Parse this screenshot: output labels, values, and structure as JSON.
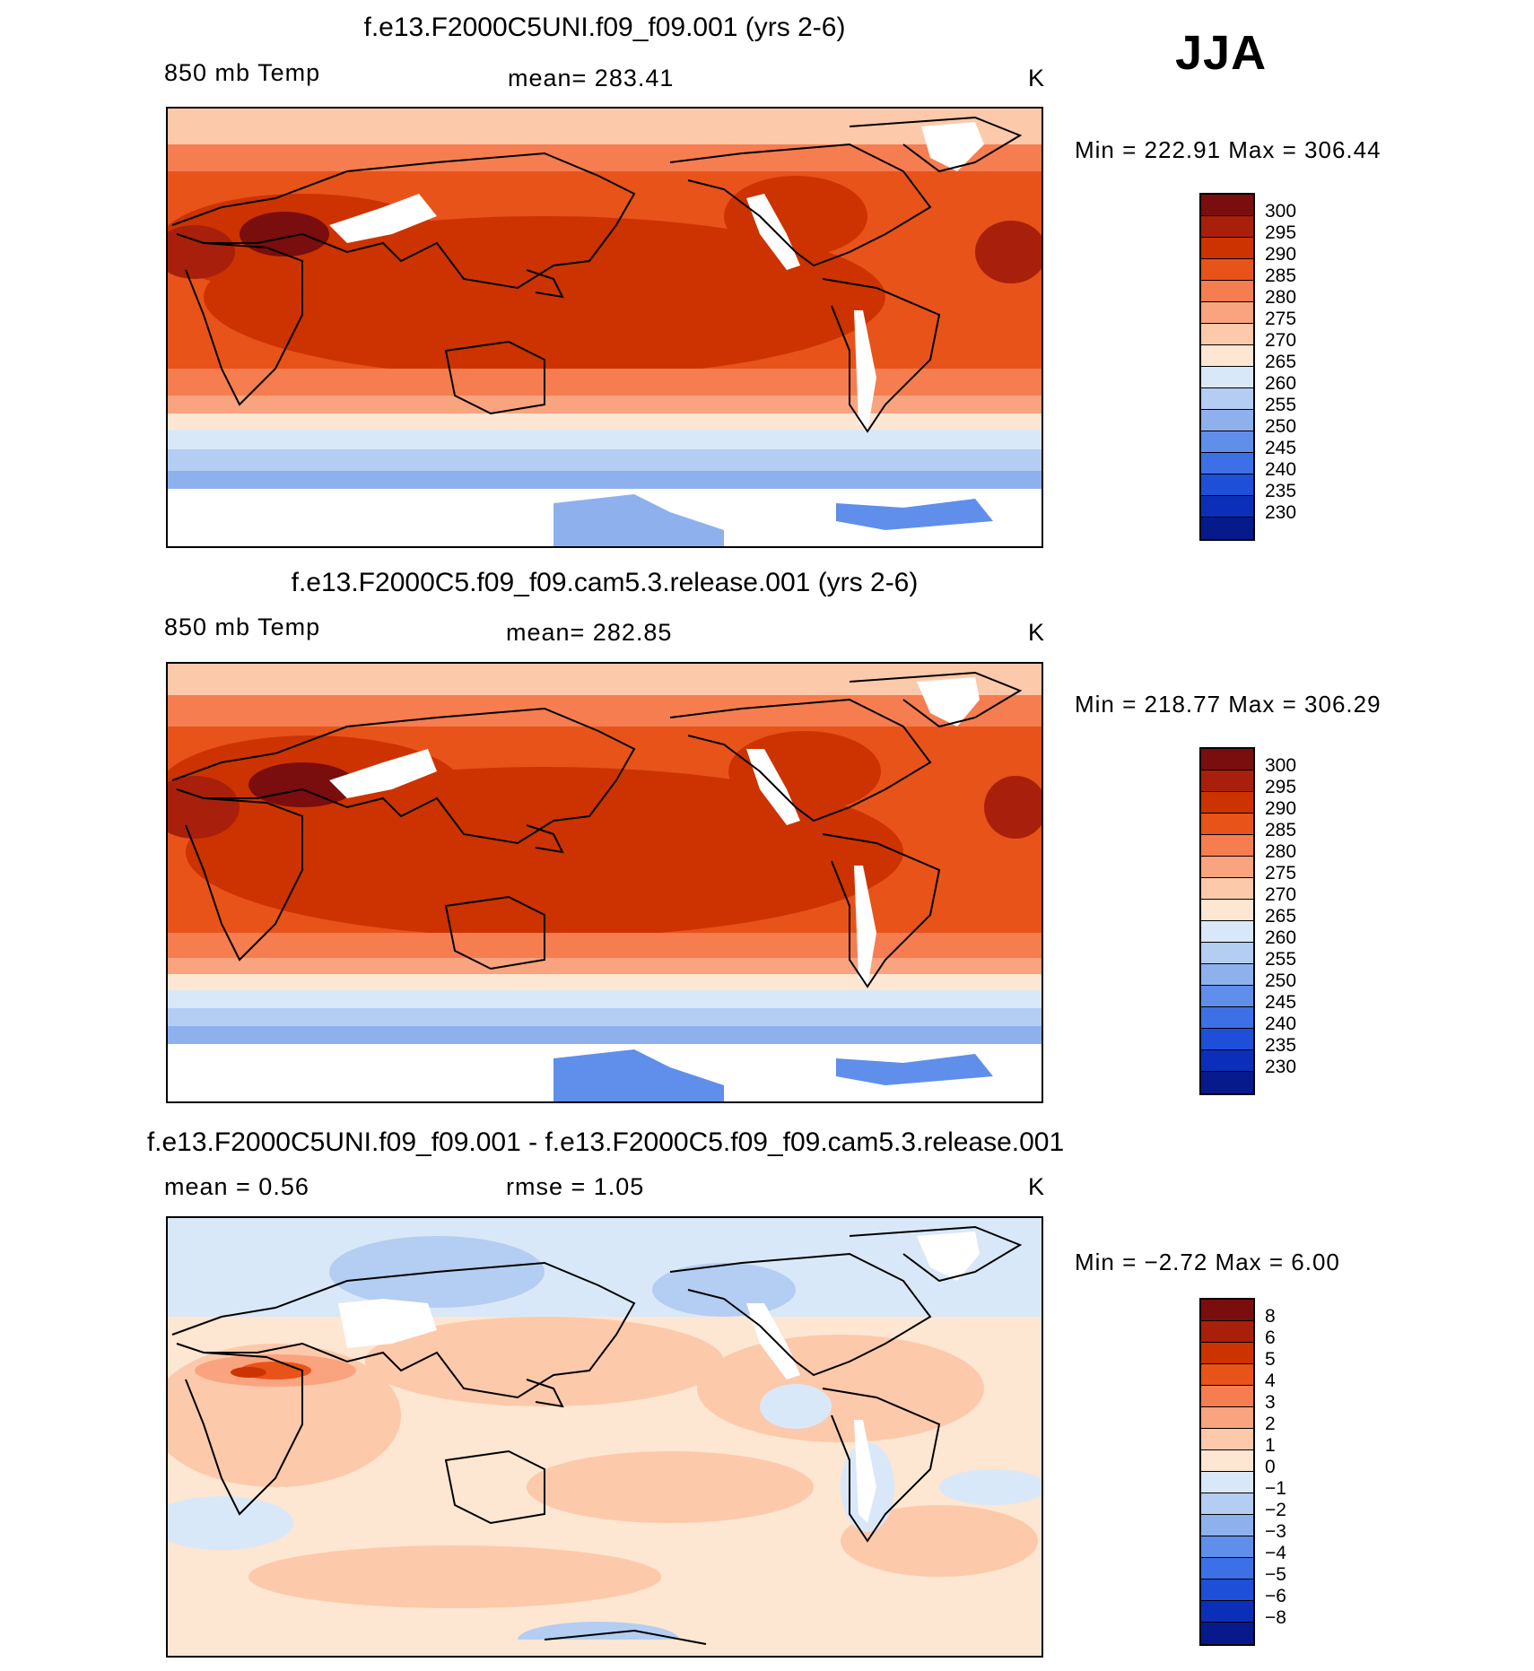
{
  "season": "JJA",
  "panels": [
    {
      "title": "f.e13.F2000C5UNI.f09_f09.001 (yrs 2-6)",
      "left_label": "850 mb Temp",
      "mid_label": "mean=  283.41",
      "units": "K",
      "minmax": "Min  =  222.91  Max  =  306.44",
      "colorbar_labels": [
        "300",
        "295",
        "290",
        "285",
        "280",
        "275",
        "270",
        "265",
        "260",
        "255",
        "250",
        "245",
        "240",
        "235",
        "230"
      ]
    },
    {
      "title": "f.e13.F2000C5.f09_f09.cam5.3.release.001 (yrs 2-6)",
      "left_label": "850 mb Temp",
      "mid_label": "mean=  282.85",
      "units": "K",
      "minmax": "Min  =  218.77  Max  =  306.29",
      "colorbar_labels": [
        "300",
        "295",
        "290",
        "285",
        "280",
        "275",
        "270",
        "265",
        "260",
        "255",
        "250",
        "245",
        "240",
        "235",
        "230"
      ]
    },
    {
      "title": "f.e13.F2000C5UNI.f09_f09.001 - f.e13.F2000C5.f09_f09.cam5.3.release.001",
      "left_label": "mean =     0.56",
      "mid_label": "rmse =     1.05",
      "units": "K",
      "minmax": "Min  =    −2.72  Max  =      6.00",
      "colorbar_labels": [
        "8",
        "6",
        "5",
        "4",
        "3",
        "2",
        "1",
        "0",
        "−1",
        "−2",
        "−3",
        "−4",
        "−5",
        "−6",
        "−8"
      ]
    }
  ],
  "colors": {
    "abs_scale": [
      "#7a0d0d",
      "#a8200b",
      "#cc3300",
      "#e8531a",
      "#f57d50",
      "#faa37f",
      "#fdc9ab",
      "#fde6d2",
      "#d9e8f8",
      "#b4cdf2",
      "#8eb1ee",
      "#5f8fea",
      "#3d6fe6",
      "#1d4fd8",
      "#0b2fb8",
      "#061a8c"
    ],
    "diff_scale": [
      "#7a0d0d",
      "#a8200b",
      "#cc3300",
      "#e8531a",
      "#f57d50",
      "#faa37f",
      "#fdc9ab",
      "#fde6d2",
      "#d9e8f8",
      "#b4cdf2",
      "#8eb1ee",
      "#5f8fea",
      "#3d6fe6",
      "#1d4fd8",
      "#0b2fb8",
      "#061a8c"
    ]
  }
}
